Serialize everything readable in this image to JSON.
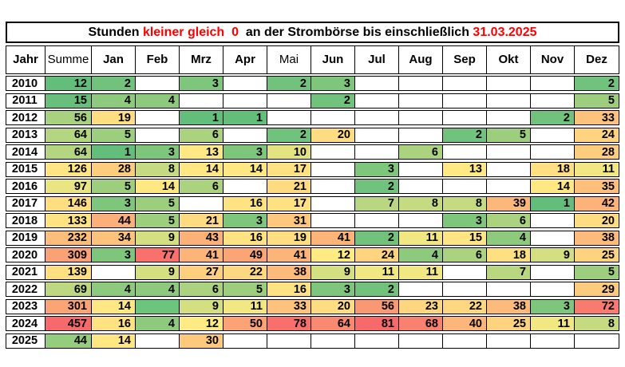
{
  "title": {
    "part1": "Stunden ",
    "highlight_threshold": "kleiner gleich  0",
    "part2": "  an der Strombörse bis einschließlich ",
    "highlight_date": "31.03.2025",
    "highlight_color": "#FF0000"
  },
  "color_scale": {
    "green": "#63BE7B",
    "yellow": "#FFEB84",
    "red": "#F8696B",
    "fill_color": "#6CC57C",
    "month_scale": {
      "min": 1,
      "mid": 12,
      "max": 81
    },
    "summe_scale": {
      "min": 12,
      "mid": 111,
      "max": 457
    }
  },
  "chart_data": {
    "type": "heatmap",
    "title": "Stunden kleiner gleich 0 an der Strombörse bis einschließlich 31.03.2025",
    "legend_position": "none",
    "grid": true,
    "columns": [
      "Jahr",
      "Summe",
      "Jan",
      "Feb",
      "Mrz",
      "Apr",
      "Mai",
      "Jun",
      "Jul",
      "Aug",
      "Sep",
      "Okt",
      "Nov",
      "Dez"
    ],
    "note": "null = empty white cell; the string fill = green-filled cell with no number (2023 Feb)",
    "rows": [
      {
        "year": "2010",
        "summe": 12,
        "months": [
          2,
          null,
          3,
          null,
          2,
          3,
          null,
          null,
          null,
          null,
          null,
          2
        ]
      },
      {
        "year": "2011",
        "summe": 15,
        "months": [
          4,
          4,
          null,
          null,
          null,
          2,
          null,
          null,
          null,
          null,
          null,
          5
        ]
      },
      {
        "year": "2012",
        "summe": 56,
        "months": [
          19,
          null,
          1,
          1,
          null,
          null,
          null,
          null,
          null,
          null,
          2,
          33
        ]
      },
      {
        "year": "2013",
        "summe": 64,
        "months": [
          5,
          null,
          6,
          null,
          2,
          20,
          null,
          null,
          2,
          5,
          null,
          24
        ]
      },
      {
        "year": "2014",
        "summe": 64,
        "months": [
          1,
          3,
          13,
          3,
          10,
          null,
          null,
          6,
          null,
          null,
          null,
          28
        ]
      },
      {
        "year": "2015",
        "summe": 126,
        "months": [
          28,
          8,
          14,
          14,
          17,
          null,
          3,
          null,
          13,
          null,
          18,
          11
        ]
      },
      {
        "year": "2016",
        "summe": 97,
        "months": [
          5,
          14,
          6,
          null,
          21,
          null,
          2,
          null,
          null,
          null,
          14,
          35
        ]
      },
      {
        "year": "2017",
        "summe": 146,
        "months": [
          3,
          5,
          null,
          16,
          17,
          null,
          7,
          8,
          8,
          39,
          1,
          42
        ]
      },
      {
        "year": "2018",
        "summe": 133,
        "months": [
          44,
          5,
          21,
          3,
          31,
          null,
          null,
          null,
          3,
          6,
          null,
          20
        ]
      },
      {
        "year": "2019",
        "summe": 232,
        "months": [
          34,
          9,
          43,
          16,
          19,
          41,
          2,
          11,
          15,
          4,
          null,
          38
        ]
      },
      {
        "year": "2020",
        "summe": 309,
        "months": [
          3,
          77,
          41,
          49,
          41,
          12,
          24,
          4,
          6,
          18,
          9,
          25
        ]
      },
      {
        "year": "2021",
        "summe": 139,
        "months": [
          null,
          9,
          27,
          22,
          38,
          9,
          11,
          11,
          null,
          7,
          null,
          5
        ]
      },
      {
        "year": "2022",
        "summe": 69,
        "months": [
          4,
          4,
          6,
          5,
          16,
          3,
          2,
          null,
          null,
          null,
          null,
          29
        ]
      },
      {
        "year": "2023",
        "summe": 301,
        "months": [
          14,
          "fill",
          9,
          11,
          33,
          20,
          56,
          23,
          22,
          38,
          3,
          72
        ]
      },
      {
        "year": "2024",
        "summe": 457,
        "months": [
          16,
          4,
          12,
          50,
          78,
          64,
          81,
          68,
          40,
          25,
          11,
          8
        ]
      },
      {
        "year": "2025",
        "summe": 44,
        "months": [
          14,
          null,
          30,
          null,
          null,
          null,
          null,
          null,
          null,
          null,
          null,
          null
        ]
      }
    ]
  }
}
